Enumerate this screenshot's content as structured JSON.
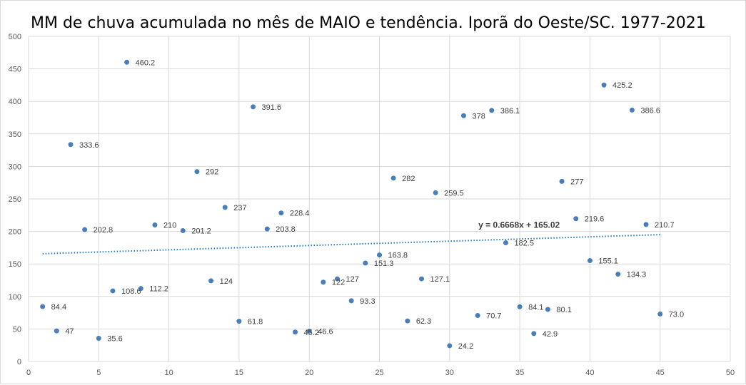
{
  "chart_data": {
    "type": "scatter",
    "title": "MM de chuva acumulada no mês de MAIO e tendência. Iporã do Oeste/SC. 1977-2021",
    "xlabel": "",
    "ylabel": "",
    "xlim": [
      0,
      50
    ],
    "ylim": [
      0,
      500
    ],
    "x_ticks": [
      0,
      5,
      10,
      15,
      20,
      25,
      30,
      35,
      40,
      45,
      50
    ],
    "y_ticks": [
      0,
      50,
      100,
      150,
      200,
      250,
      300,
      350,
      400,
      450,
      500
    ],
    "grid": true,
    "legend": "none",
    "marker_color": "#4a7ebb",
    "trend_color": "#2e75b6",
    "series": [
      {
        "x": [
          1,
          2,
          3,
          4,
          5,
          6,
          7,
          8,
          9,
          10,
          11,
          12,
          13,
          14,
          15,
          16,
          17,
          18,
          19,
          20,
          21,
          22,
          23,
          24,
          25,
          26,
          27,
          28,
          29,
          30,
          31,
          32,
          33,
          34,
          35,
          36,
          37,
          38,
          39,
          40,
          41,
          42,
          43,
          44,
          45
        ],
        "y": [
          84.4,
          47,
          333.6,
          202.8,
          35.6,
          108.6,
          460.2,
          112.2,
          210,
          null,
          201.2,
          292,
          124,
          237,
          61.8,
          391.6,
          203.8,
          228.4,
          45.2,
          46.6,
          122,
          127,
          93.3,
          151.3,
          163.8,
          282,
          62.3,
          127.1,
          259.5,
          24.2,
          378,
          70.7,
          386.1,
          182.5,
          84.1,
          42.9,
          80.1,
          277,
          219.6,
          155.1,
          425.2,
          134.3,
          386.6,
          210.7,
          73.0
        ],
        "labels": [
          "84.4",
          "47",
          "333.6",
          "202.8",
          "35.6",
          "108.6",
          "460.2",
          "112.2",
          "210",
          "",
          "201.2",
          "292",
          "124",
          "237",
          "61.8",
          "391.6",
          "203.8",
          "228.4",
          "45.2",
          "46.6",
          "122",
          "127",
          "93.3",
          "151.3",
          "163.8",
          "282",
          "62.3",
          "127.1",
          "259.5",
          "24.2",
          "378",
          "70.7",
          "386.1",
          "182.5",
          "84.1",
          "42.9",
          "80.1",
          "277",
          "219.6",
          "155.1",
          "425.2",
          "134.3",
          "386.6",
          "210.7",
          "73.0"
        ]
      }
    ],
    "trendline": {
      "type": "linear",
      "slope": 0.6668,
      "intercept": 165.02,
      "x_range": [
        1,
        45
      ],
      "equation": "y = 0.6668x + 165.02",
      "equation_at": [
        35,
        210
      ]
    }
  }
}
